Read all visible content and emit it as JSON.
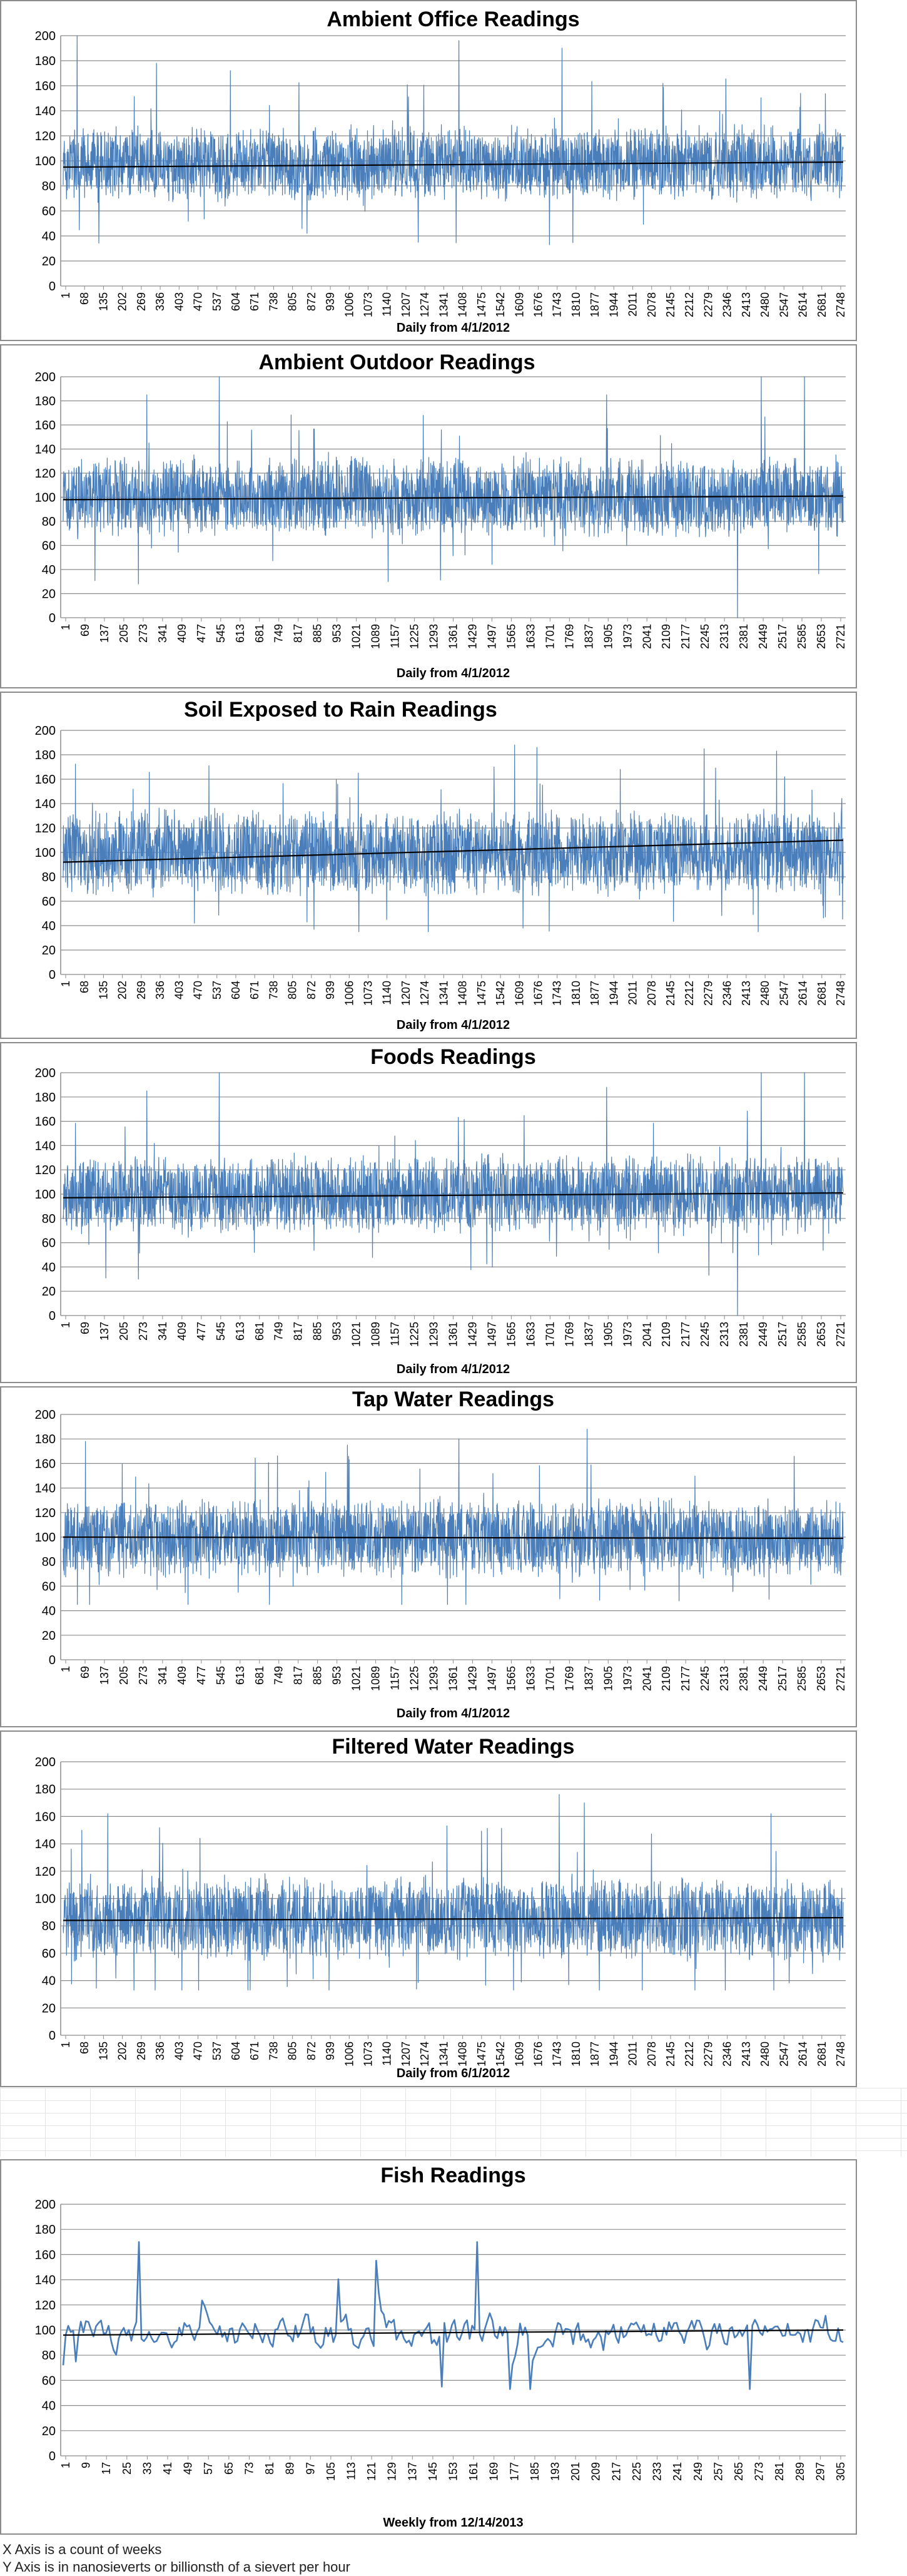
{
  "notes": {
    "line1": "X Axis is a count of weeks",
    "line2": "Y Axis is in nanosieverts or billionsth of a sievert per hour"
  },
  "colors": {
    "series": "#4a7ebb",
    "trend": "#000000",
    "grid": "#8c8c8c",
    "axis_text": "#000000"
  },
  "chart_data": [
    {
      "type": "line",
      "title": "Ambient Office Readings",
      "xlabel": "Daily from 4/1/2012",
      "ylabel": "",
      "ylim": [
        0,
        200
      ],
      "yticks": [
        0,
        20,
        40,
        60,
        80,
        100,
        120,
        140,
        160,
        180,
        200
      ],
      "xtick_labels": [
        "1",
        "68",
        "135",
        "202",
        "269",
        "336",
        "403",
        "470",
        "537",
        "604",
        "671",
        "738",
        "805",
        "872",
        "939",
        "1006",
        "1073",
        "1140",
        "1207",
        "1274",
        "1341",
        "1408",
        "1475",
        "1542",
        "1609",
        "1676",
        "1743",
        "1810",
        "1877",
        "1944",
        "2011",
        "2078",
        "2145",
        "2212",
        "2279",
        "2346",
        "2413",
        "2480",
        "2547",
        "2614",
        "2681",
        "2748"
      ],
      "n_points": 2800,
      "series_mean": 98,
      "series_band": [
        65,
        130
      ],
      "series_min": 32,
      "series_max": 200,
      "spikes": [
        [
          50,
          200
        ],
        [
          1420,
          196
        ],
        [
          1790,
          190
        ],
        [
          335,
          178
        ],
        [
          600,
          172
        ],
        [
          1274,
          35
        ],
        [
          1745,
          33
        ]
      ],
      "trend": [
        95,
        99
      ],
      "grid": true
    },
    {
      "type": "line",
      "title": "Ambient Outdoor Readings",
      "xlabel": "Daily from 4/1/2012",
      "ylabel": "",
      "ylim": [
        0,
        200
      ],
      "yticks": [
        0,
        20,
        40,
        60,
        80,
        100,
        120,
        140,
        160,
        180,
        200
      ],
      "xtick_labels": [
        "1",
        "69",
        "137",
        "205",
        "273",
        "341",
        "409",
        "477",
        "545",
        "613",
        "681",
        "749",
        "817",
        "885",
        "953",
        "1021",
        "1089",
        "1157",
        "1225",
        "1293",
        "1361",
        "1429",
        "1497",
        "1565",
        "1633",
        "1701",
        "1769",
        "1837",
        "1905",
        "1973",
        "2041",
        "2109",
        "2177",
        "2245",
        "2313",
        "2381",
        "2449",
        "2517",
        "2585",
        "2653",
        "2721"
      ],
      "n_points": 2800,
      "series_mean": 100,
      "series_band": [
        65,
        135
      ],
      "series_min": 0,
      "series_max": 200,
      "spikes": [
        [
          560,
          200
        ],
        [
          2420,
          0
        ],
        [
          2505,
          200
        ],
        [
          2660,
          200
        ],
        [
          300,
          185
        ],
        [
          1950,
          185
        ],
        [
          270,
          28
        ]
      ],
      "trend": [
        98,
        101
      ],
      "grid": true
    },
    {
      "type": "line",
      "title": "Soil Exposed to Rain Readings",
      "xlabel": "Daily from 4/1/2012",
      "ylabel": "",
      "ylim": [
        0,
        200
      ],
      "yticks": [
        0,
        20,
        40,
        60,
        80,
        100,
        120,
        140,
        160,
        180,
        200
      ],
      "xtick_labels": [
        "1",
        "68",
        "135",
        "202",
        "269",
        "336",
        "403",
        "470",
        "537",
        "604",
        "671",
        "738",
        "805",
        "872",
        "939",
        "1006",
        "1073",
        "1140",
        "1207",
        "1274",
        "1341",
        "1408",
        "1475",
        "1542",
        "1609",
        "1676",
        "1743",
        "1810",
        "1877",
        "1944",
        "2011",
        "2078",
        "2145",
        "2212",
        "2279",
        "2346",
        "2413",
        "2480",
        "2547",
        "2614",
        "2681",
        "2748"
      ],
      "n_points": 2800,
      "series_mean": 100,
      "series_band": [
        65,
        140
      ],
      "series_min": 35,
      "series_max": 188,
      "spikes": [
        [
          1620,
          188
        ],
        [
          1700,
          186
        ],
        [
          2300,
          185
        ],
        [
          2560,
          183
        ],
        [
          900,
          37
        ],
        [
          1650,
          38
        ]
      ],
      "trend": [
        92,
        110
      ],
      "grid": true
    },
    {
      "type": "line",
      "title": "Foods Readings",
      "xlabel": "Daily from 4/1/2012",
      "ylabel": "",
      "ylim": [
        0,
        200
      ],
      "yticks": [
        0,
        20,
        40,
        60,
        80,
        100,
        120,
        140,
        160,
        180,
        200
      ],
      "xtick_labels": [
        "1",
        "69",
        "137",
        "205",
        "273",
        "341",
        "409",
        "477",
        "545",
        "613",
        "681",
        "749",
        "817",
        "885",
        "953",
        "1021",
        "1089",
        "1157",
        "1225",
        "1293",
        "1361",
        "1429",
        "1497",
        "1565",
        "1633",
        "1701",
        "1769",
        "1837",
        "1905",
        "1973",
        "2041",
        "2109",
        "2177",
        "2245",
        "2313",
        "2381",
        "2449",
        "2517",
        "2585",
        "2653",
        "2721"
      ],
      "n_points": 2800,
      "series_mean": 100,
      "series_band": [
        65,
        135
      ],
      "series_min": 0,
      "series_max": 200,
      "spikes": [
        [
          560,
          200
        ],
        [
          2420,
          0
        ],
        [
          2505,
          200
        ],
        [
          2660,
          200
        ],
        [
          300,
          185
        ],
        [
          1950,
          188
        ],
        [
          270,
          30
        ]
      ],
      "trend": [
        97,
        101
      ],
      "grid": true
    },
    {
      "type": "line",
      "title": "Tap Water Readings",
      "xlabel": "Daily from 4/1/2012",
      "ylabel": "",
      "ylim": [
        0,
        200
      ],
      "yticks": [
        0,
        20,
        40,
        60,
        80,
        100,
        120,
        140,
        160,
        180,
        200
      ],
      "xtick_labels": [
        "1",
        "69",
        "137",
        "205",
        "273",
        "341",
        "409",
        "477",
        "545",
        "613",
        "681",
        "749",
        "817",
        "885",
        "953",
        "1021",
        "1089",
        "1157",
        "1225",
        "1293",
        "1361",
        "1429",
        "1497",
        "1565",
        "1633",
        "1701",
        "1769",
        "1837",
        "1905",
        "1973",
        "2041",
        "2109",
        "2177",
        "2245",
        "2313",
        "2381",
        "2449",
        "2517",
        "2585",
        "2653",
        "2721"
      ],
      "n_points": 2800,
      "series_mean": 99,
      "series_band": [
        65,
        132
      ],
      "series_min": 45,
      "series_max": 188,
      "spikes": [
        [
          1880,
          188
        ],
        [
          1420,
          180
        ],
        [
          80,
          178
        ],
        [
          1020,
          175
        ],
        [
          2210,
          48
        ]
      ],
      "trend": [
        100,
        99
      ],
      "grid": true
    },
    {
      "type": "line",
      "title": "Filtered Water Readings",
      "xlabel": "Daily from 6/1/2012",
      "ylabel": "",
      "ylim": [
        0,
        200
      ],
      "yticks": [
        0,
        20,
        40,
        60,
        80,
        100,
        120,
        140,
        160,
        180,
        200
      ],
      "xtick_labels": [
        "1",
        "68",
        "135",
        "202",
        "269",
        "336",
        "403",
        "470",
        "537",
        "604",
        "671",
        "738",
        "805",
        "872",
        "939",
        "1006",
        "1073",
        "1140",
        "1207",
        "1274",
        "1341",
        "1408",
        "1475",
        "1542",
        "1609",
        "1676",
        "1743",
        "1810",
        "1877",
        "1944",
        "2011",
        "2078",
        "2145",
        "2212",
        "2279",
        "2346",
        "2413",
        "2480",
        "2547",
        "2614",
        "2681",
        "2748"
      ],
      "n_points": 2800,
      "series_mean": 86,
      "series_band": [
        55,
        120
      ],
      "series_min": 33,
      "series_max": 176,
      "spikes": [
        [
          1780,
          176
        ],
        [
          1870,
          170
        ],
        [
          160,
          162
        ],
        [
          2540,
          162
        ],
        [
          330,
          33
        ]
      ],
      "trend": [
        84,
        86
      ],
      "grid": true
    },
    {
      "type": "line",
      "title": "Fish Readings",
      "xlabel": "Weekly from 12/14/2013",
      "ylabel": "",
      "ylim": [
        0,
        200
      ],
      "yticks": [
        0,
        20,
        40,
        60,
        80,
        100,
        120,
        140,
        160,
        180,
        200
      ],
      "xtick_labels": [
        "1",
        "9",
        "17",
        "25",
        "33",
        "41",
        "49",
        "57",
        "65",
        "73",
        "81",
        "89",
        "97",
        "105",
        "113",
        "121",
        "129",
        "137",
        "145",
        "153",
        "161",
        "169",
        "177",
        "185",
        "193",
        "201",
        "209",
        "217",
        "225",
        "233",
        "241",
        "249",
        "257",
        "265",
        "273",
        "281",
        "289",
        "297",
        "305"
      ],
      "n_points": 310,
      "series_mean": 98,
      "series_band": [
        75,
        122
      ],
      "series_min": 53,
      "series_max": 170,
      "spikes": [
        [
          30,
          170
        ],
        [
          164,
          170
        ],
        [
          0,
          72
        ],
        [
          5,
          75
        ],
        [
          272,
          53
        ],
        [
          150,
          55
        ]
      ],
      "trend": [
        96,
        100
      ],
      "grid": true
    }
  ]
}
